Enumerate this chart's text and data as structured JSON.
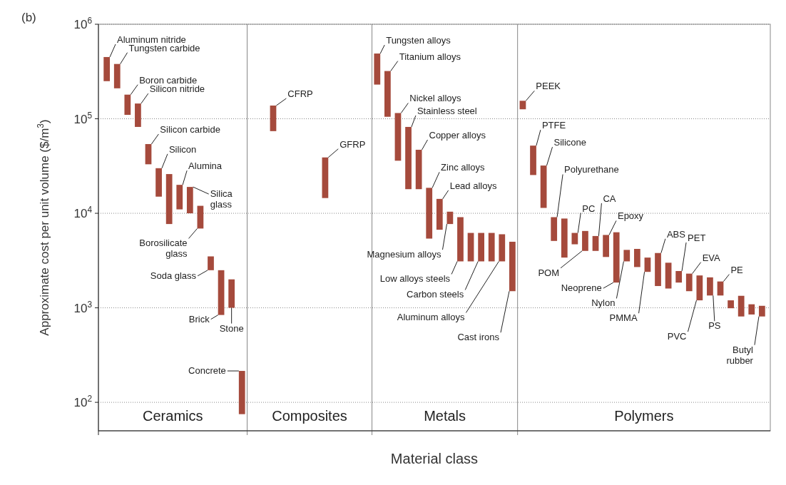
{
  "chart_data": {
    "type": "bar",
    "xlabel": "Material class",
    "ylabel": "Approximate cost per unit volume ($/m$^{3}$)",
    "annotations": [
      "(b)",
      "Ceramics",
      "Composites",
      "Metals",
      "Polymers",
      "Aluminum nitride",
      "Tungsten carbide",
      "Boron carbide",
      "Silicon nitride",
      "Silicon carbide",
      "Silicon",
      "Alumina",
      "Silica\nglass",
      "Borosilicate\nglass",
      "Soda glass",
      "Brick",
      "Stone",
      "Concrete",
      "CFRP",
      "GFRP",
      "Tungsten alloys",
      "Titanium alloys",
      "Nickel alloys",
      "Stainless steel",
      "Copper alloys",
      "Zinc alloys",
      "Lead alloys",
      "Magnesium alloys",
      "Low alloys steels",
      "Carbon steels",
      "Aluminum alloys",
      "Cast irons",
      "PEEK",
      "PTFE",
      "Silicone",
      "Polyurethane",
      "PC",
      "POM",
      "CA",
      "Epoxy",
      "Neoprene",
      "Nylon",
      "PMMA",
      "ABS",
      "PET",
      "EVA",
      "PVC",
      "PS",
      "PE",
      "Butyl\nrubber"
    ],
    "categories": [
      null,
      null,
      null,
      null,
      null,
      null,
      null,
      null,
      null,
      null,
      null,
      null,
      null,
      null,
      null,
      null,
      null,
      null,
      null,
      null,
      null,
      null,
      null,
      null,
      null,
      null,
      null,
      null,
      null,
      null,
      null,
      null,
      null,
      null,
      null,
      null,
      null,
      null,
      null,
      null,
      null,
      null,
      null,
      null,
      null,
      null,
      null,
      null,
      null,
      null,
      null,
      null,
      null,
      null,
      null,
      null,
      null,
      null,
      null,
      null,
      null,
      null,
      null,
      null
    ],
    "base": [
      250000,
      210000,
      110000,
      82000,
      33000,
      15000,
      7700,
      11000,
      10000,
      6900,
      2500,
      840,
      1000,
      75,
      null,
      null,
      74000,
      null,
      null,
      null,
      null,
      14500,
      null,
      null,
      null,
      null,
      230000,
      105000,
      36000,
      18000,
      18000,
      5400,
      6700,
      7700,
      3100,
      3100,
      3100,
      3100,
      3100,
      1500,
      126000,
      25400,
      11400,
      5100,
      3400,
      4700,
      4000,
      4000,
      3450,
      1850,
      3100,
      2700,
      2400,
      1700,
      1600,
      1850,
      1500,
      1200,
      1350,
      1350,
      990,
      810,
      850,
      810
    ],
    "values": [
      200000,
      170000,
      70000,
      63000,
      21000,
      15000,
      18300,
      9000,
      9000,
      5100,
      1000,
      1660,
      1000,
      140,
      null,
      null,
      64000,
      null,
      null,
      null,
      null,
      24500,
      null,
      null,
      null,
      null,
      260000,
      215000,
      79000,
      64000,
      29000,
      13200,
      7500,
      2700,
      6000,
      3100,
      3100,
      3100,
      2900,
      3500,
      29000,
      26600,
      20600,
      4000,
      5400,
      1500,
      2500,
      1750,
      2450,
      4450,
      1000,
      1500,
      1000,
      2100,
      1400,
      600,
      800,
      1000,
      750,
      550,
      210,
      530,
      240,
      240
    ],
    "color": "#a54a3c",
    "log": true,
    "ylim": [
      50,
      1000000
    ],
    "yticks": [
      {
        "value": 100,
        "label": "10$^{2}$"
      },
      {
        "value": 1000,
        "label": "10$^{3}$"
      },
      {
        "value": 10000,
        "label": "10$^{4}$"
      },
      {
        "value": 100000,
        "label": "10$^{5}$"
      },
      {
        "value": 1000000,
        "label": "10$^{6}$"
      }
    ],
    "grid": "y",
    "tick_labels": "y"
  }
}
